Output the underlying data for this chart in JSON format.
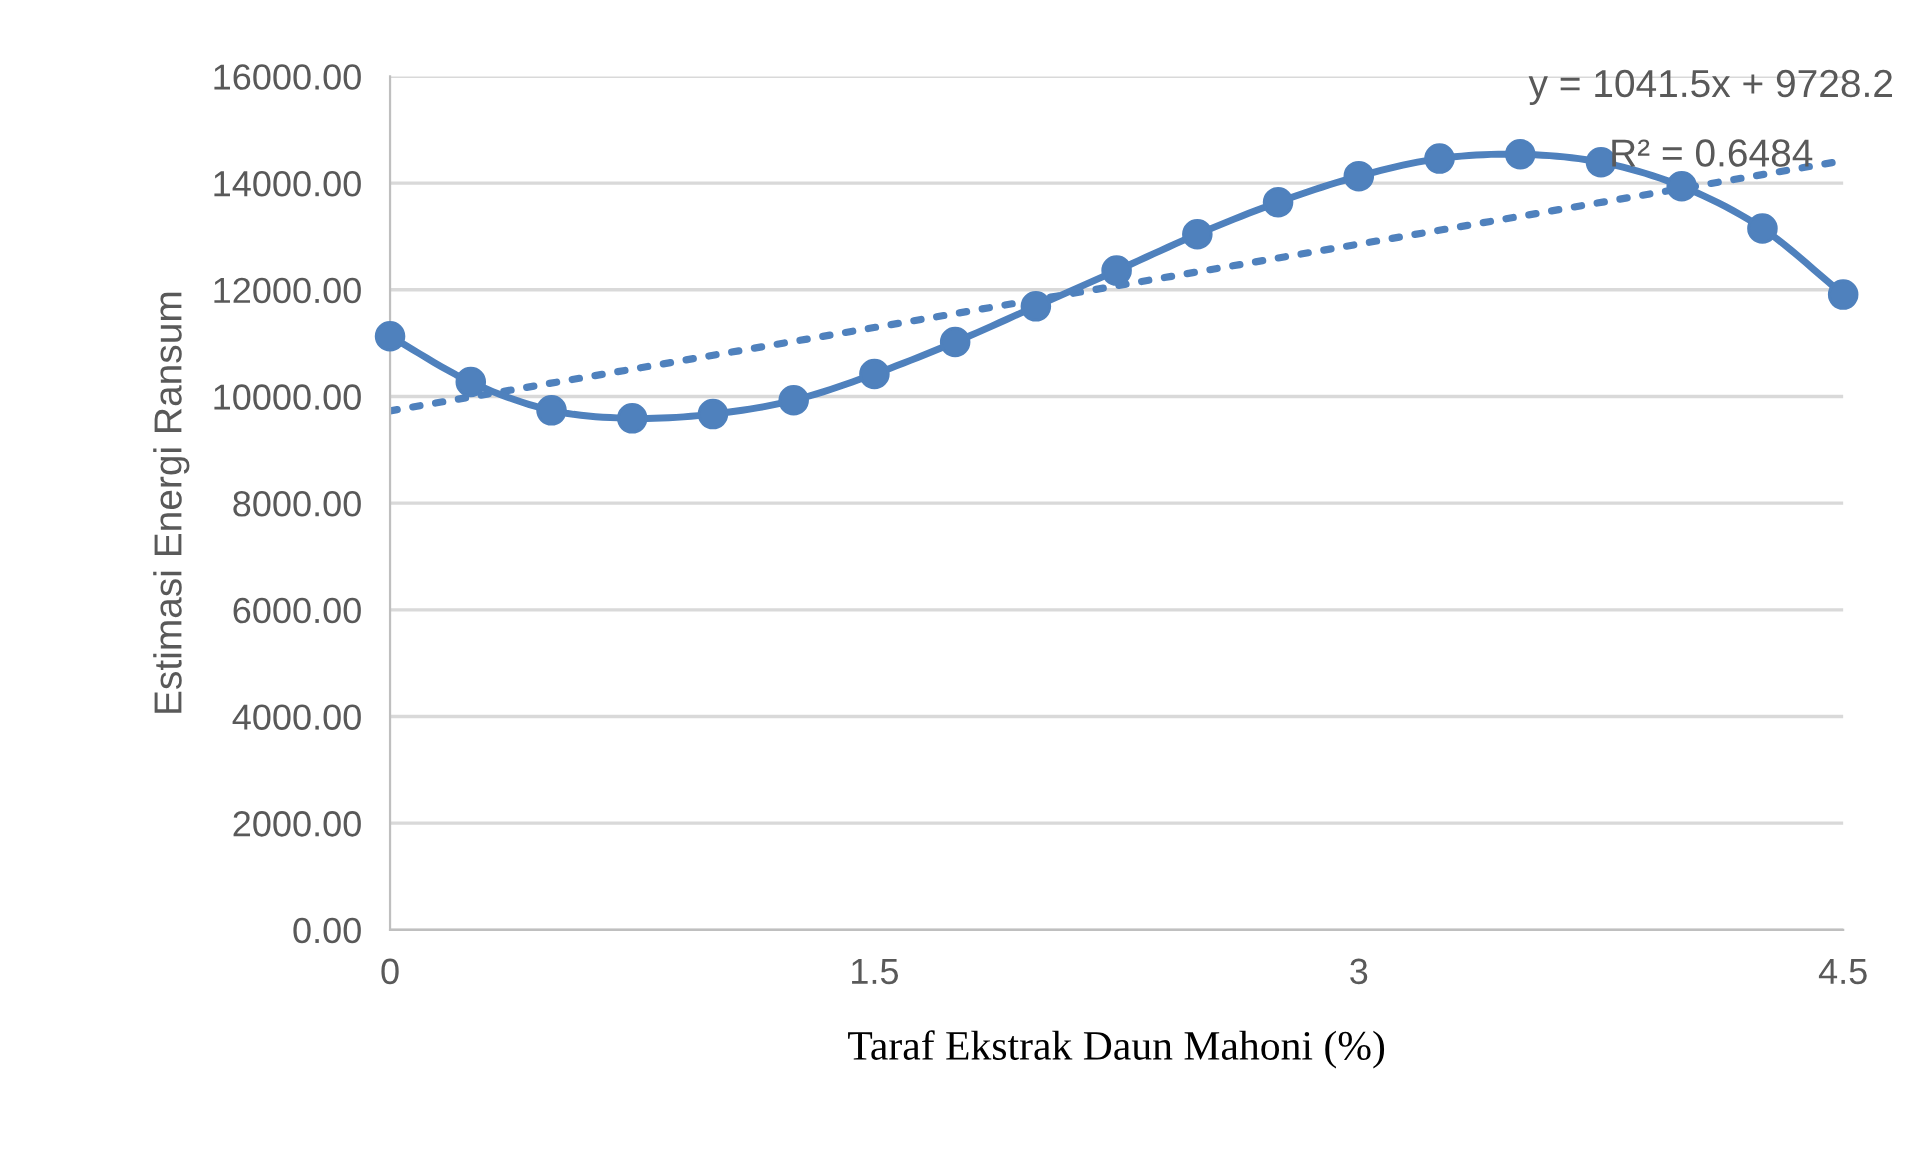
{
  "chart_data": {
    "type": "line",
    "xlabel": "Taraf Ekstrak Daun Mahoni (%)",
    "ylabel": "Estimasi Energi Ransum",
    "series": [
      {
        "color": "#4f81bd",
        "marker": "circle",
        "line_style": "solid",
        "x": [
          0,
          0.25,
          0.5,
          0.75,
          1,
          1.25,
          1.5,
          1.75,
          2,
          2.25,
          2.5,
          2.75,
          3,
          3.25,
          3.5,
          3.75,
          4,
          4.25,
          4.5
        ],
        "values": [
          11130,
          10270,
          9740,
          9590,
          9670,
          9930,
          10420,
          11020,
          11690,
          12360,
          13040,
          13640,
          14130,
          14460,
          14540,
          14390,
          13940,
          13150,
          11910
        ]
      },
      {
        "color": "#4f81bd",
        "marker": "none",
        "line_style": "dotted",
        "x": [
          0,
          4.5
        ],
        "values": [
          9730,
          14420
        ]
      }
    ],
    "annotations": [
      "y = 1041.5x + 9728.2",
      "R² = 0.6484"
    ],
    "xlim": [
      0,
      4.5
    ],
    "xticks": [
      0,
      1.5,
      3,
      4.5
    ],
    "ylim": [
      0,
      16000
    ],
    "yticks": [
      {
        "value": 0,
        "label": "0.00"
      },
      {
        "value": 2000,
        "label": "2000.00"
      },
      {
        "value": 4000,
        "label": "4000.00"
      },
      {
        "value": 6000,
        "label": "6000.00"
      },
      {
        "value": 8000,
        "label": "8000.00"
      },
      {
        "value": 10000,
        "label": "10000.00"
      },
      {
        "value": 12000,
        "label": "12000.00"
      },
      {
        "value": 14000,
        "label": "14000.00"
      },
      {
        "value": 16000,
        "label": "16000.00"
      }
    ],
    "grid": "y",
    "legend": false
  }
}
